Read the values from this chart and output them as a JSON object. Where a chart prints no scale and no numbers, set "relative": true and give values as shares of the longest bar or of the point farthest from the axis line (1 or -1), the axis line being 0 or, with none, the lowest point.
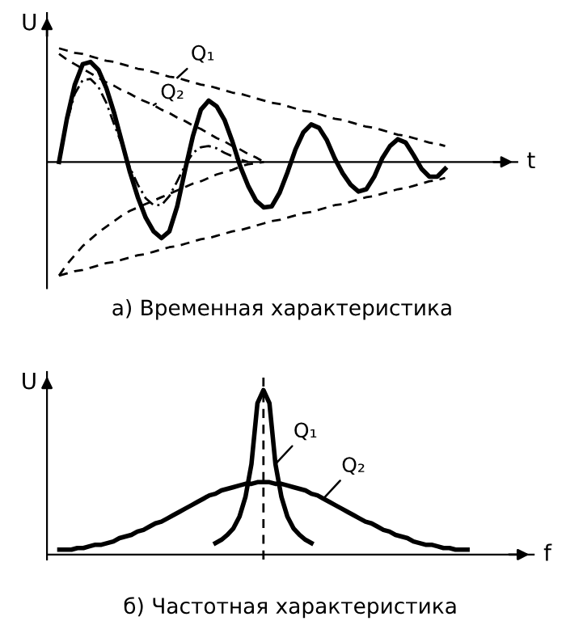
{
  "chart_data": [
    {
      "type": "line",
      "relative": true,
      "xlabel": "t",
      "ylabel": "U",
      "categories": [
        null,
        null,
        null,
        null,
        null,
        null,
        null,
        null,
        null,
        null,
        null,
        null,
        null,
        null,
        null,
        null,
        null,
        null,
        null,
        null,
        null,
        null,
        null,
        null,
        null,
        null,
        null,
        null,
        null,
        null,
        null,
        null,
        null,
        null,
        null,
        null,
        null,
        null,
        null,
        null,
        null,
        null,
        null,
        null,
        null,
        null,
        null,
        null,
        null,
        null,
        null
      ],
      "series": [
        {
          "color": "#000000",
          "line_style": "solid",
          "values": [
            0,
            0.38,
            0.68,
            0.86,
            0.88,
            0.81,
            0.65,
            0.43,
            0.17,
            -0.09,
            -0.31,
            -0.49,
            -0.61,
            -0.67,
            -0.61,
            -0.39,
            -0.07,
            0.23,
            0.46,
            0.54,
            0.49,
            0.37,
            0.18,
            -0.04,
            -0.21,
            -0.34,
            -0.4,
            -0.39,
            -0.27,
            -0.09,
            0.11,
            0.26,
            0.33,
            0.3,
            0.19,
            0.03,
            -0.1,
            -0.2,
            -0.26,
            -0.24,
            -0.13,
            0.03,
            0.14,
            0.2,
            0.17,
            0.06,
            -0.06,
            -0.13,
            -0.13,
            -0.06,
            null
          ]
        },
        {
          "name": "Q₁",
          "color": "#000000",
          "line_style": "dashed",
          "values": [
            1.0,
            0.98,
            0.96,
            0.95,
            0.93,
            0.91,
            0.89,
            0.88,
            0.86,
            0.84,
            0.82,
            0.81,
            0.79,
            0.77,
            0.75,
            0.74,
            0.72,
            0.7,
            0.68,
            0.67,
            0.65,
            0.63,
            0.61,
            0.6,
            0.58,
            0.56,
            0.54,
            0.52,
            0.51,
            0.49,
            0.47,
            0.45,
            0.44,
            0.42,
            0.4,
            0.38,
            0.37,
            0.35,
            0.33,
            0.31,
            0.3,
            0.28,
            0.26,
            0.24,
            0.23,
            0.21,
            0.19,
            0.17,
            0.16,
            0.14,
            null
          ]
        },
        {
          "color": "#000000",
          "line_style": "dashed",
          "values": [
            -1.0,
            -0.98,
            -0.96,
            -0.95,
            -0.93,
            -0.91,
            -0.89,
            -0.88,
            -0.86,
            -0.84,
            -0.82,
            -0.81,
            -0.79,
            -0.77,
            -0.75,
            -0.74,
            -0.72,
            -0.7,
            -0.68,
            -0.67,
            -0.65,
            -0.63,
            -0.61,
            -0.6,
            -0.58,
            -0.56,
            -0.54,
            -0.52,
            -0.51,
            -0.49,
            -0.47,
            -0.45,
            -0.44,
            -0.42,
            -0.4,
            -0.38,
            -0.37,
            -0.35,
            -0.33,
            -0.31,
            -0.3,
            -0.28,
            -0.26,
            -0.24,
            -0.23,
            -0.21,
            -0.19,
            -0.17,
            -0.16,
            -0.14,
            null
          ]
        },
        {
          "name": "Q₂",
          "color": "#000000",
          "line_style": "dashed",
          "values": [
            0.95,
            0.9,
            0.86,
            0.82,
            0.78,
            0.74,
            0.7,
            0.67,
            0.63,
            0.6,
            0.56,
            0.53,
            0.5,
            0.46,
            0.43,
            0.39,
            0.36,
            0.32,
            0.29,
            0.25,
            0.21,
            0.18,
            0.14,
            0.11,
            0.07,
            0.04,
            0,
            null,
            null,
            null,
            null,
            null,
            null,
            null,
            null,
            null,
            null,
            null,
            null,
            null,
            null,
            null,
            null,
            null,
            null,
            null,
            null,
            null,
            null,
            null,
            null
          ]
        },
        {
          "color": "#000000",
          "line_style": "dashed",
          "values": [
            -1.0,
            -0.9,
            -0.82,
            -0.74,
            -0.68,
            -0.62,
            -0.57,
            -0.52,
            -0.47,
            -0.43,
            -0.4,
            -0.37,
            -0.34,
            -0.31,
            -0.28,
            -0.25,
            -0.22,
            -0.19,
            -0.17,
            -0.14,
            -0.11,
            -0.09,
            -0.07,
            -0.04,
            -0.02,
            -0.01,
            0,
            null,
            null,
            null,
            null,
            null,
            null,
            null,
            null,
            null,
            null,
            null,
            null,
            null,
            null,
            null,
            null,
            null,
            null,
            null,
            null,
            null,
            null,
            null,
            null
          ]
        },
        {
          "color": "#000000",
          "line_style": "dotted",
          "values": [
            0,
            0.35,
            0.6,
            0.72,
            0.73,
            0.66,
            0.52,
            0.33,
            0.15,
            -0.05,
            -0.2,
            -0.32,
            -0.38,
            -0.38,
            -0.3,
            -0.17,
            -0.03,
            0.08,
            0.13,
            0.14,
            0.12,
            0.08,
            0.05,
            0.02,
            0,
            null,
            null,
            null,
            null,
            null,
            null,
            null,
            null,
            null,
            null,
            null,
            null,
            null,
            null,
            null,
            null,
            null,
            null,
            null,
            null,
            null,
            null,
            null,
            null,
            null,
            null
          ]
        }
      ],
      "annotations": [
        "а) Временная характеристика"
      ]
    },
    {
      "type": "line",
      "relative": true,
      "xlabel": "f",
      "ylabel": "U",
      "categories": [
        null,
        null,
        null,
        null,
        null,
        null,
        null,
        null,
        null,
        null,
        null,
        null,
        null,
        null,
        null,
        null,
        null,
        null,
        null,
        null,
        null,
        null,
        null,
        null,
        null,
        null,
        null,
        null,
        null,
        null,
        null,
        null,
        null,
        null,
        null,
        null,
        null,
        null,
        null,
        null,
        null,
        null,
        null,
        null,
        null,
        null,
        null,
        null,
        null,
        null,
        null,
        null,
        null,
        null,
        null,
        null,
        null,
        null,
        null,
        null,
        null,
        null,
        null,
        null,
        null,
        null,
        null,
        null,
        null
      ],
      "series": [
        {
          "name": "Q₁",
          "color": "#000000",
          "line_style": "solid",
          "values": [
            null,
            null,
            null,
            null,
            null,
            null,
            null,
            null,
            null,
            null,
            null,
            null,
            null,
            null,
            null,
            null,
            null,
            null,
            null,
            null,
            null,
            null,
            null,
            null,
            null,
            null,
            0.07,
            0.09,
            0.12,
            0.16,
            0.23,
            0.35,
            0.55,
            0.92,
            1.0,
            0.92,
            0.55,
            0.35,
            0.23,
            0.16,
            0.12,
            0.09,
            0.07,
            null,
            null,
            null,
            null,
            null,
            null,
            null,
            null,
            null,
            null,
            null,
            null,
            null,
            null,
            null,
            null,
            null,
            null,
            null,
            null,
            null,
            null,
            null,
            null,
            null,
            null
          ]
        },
        {
          "name": "Q₂",
          "color": "#000000",
          "line_style": "solid",
          "values": [
            0.03,
            0.03,
            0.03,
            0.04,
            0.04,
            0.05,
            0.06,
            0.06,
            0.07,
            0.08,
            0.1,
            0.11,
            0.12,
            0.14,
            0.15,
            0.17,
            0.19,
            0.2,
            0.22,
            0.24,
            0.26,
            0.28,
            0.3,
            0.32,
            0.34,
            0.36,
            0.37,
            0.39,
            0.4,
            0.41,
            0.42,
            0.43,
            0.43,
            0.44,
            0.44,
            0.44,
            0.43,
            0.43,
            0.42,
            0.41,
            0.4,
            0.39,
            0.37,
            0.36,
            0.34,
            0.32,
            0.3,
            0.28,
            0.26,
            0.24,
            0.22,
            0.2,
            0.19,
            0.17,
            0.15,
            0.14,
            0.12,
            0.11,
            0.1,
            0.08,
            0.07,
            0.06,
            0.06,
            0.05,
            0.04,
            0.04,
            0.03,
            0.03,
            0.03
          ]
        }
      ],
      "annotations": [
        "б) Частотная характеристика"
      ]
    }
  ]
}
